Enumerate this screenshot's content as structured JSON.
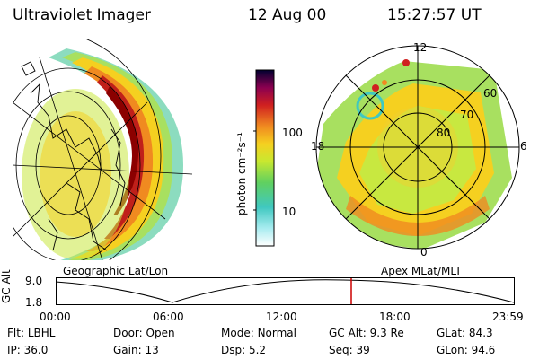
{
  "header": {
    "instrument": "Ultraviolet Imager",
    "date": "12 Aug 00",
    "time": "15:27:57 UT"
  },
  "colorbar": {
    "unit_label": "photon cm⁻²s⁻¹",
    "ticks": [
      "100",
      "10"
    ]
  },
  "polar_plot": {
    "lat_labels": [
      "60",
      "70",
      "80"
    ],
    "mlt_labels": [
      "12",
      "18",
      "6",
      "0"
    ]
  },
  "panel_labels": {
    "left": "Geographic Lat/Lon",
    "right": "Apex MLat/MLT"
  },
  "altitude_panel": {
    "ylabel": "GC Alt",
    "yticks": [
      "9.0",
      "1.8"
    ],
    "xticks": [
      "00:00",
      "06:00",
      "12:00",
      "18:00",
      "23:59"
    ],
    "current_time_fraction": 0.6444
  },
  "info": {
    "row1": [
      {
        "label": "Flt:",
        "value": "LBHL"
      },
      {
        "label": "Door:",
        "value": "Open"
      },
      {
        "label": "Mode:",
        "value": "Normal"
      },
      {
        "label": "GC Alt:",
        "value": "9.3 Re"
      },
      {
        "label": "GLat:",
        "value": "84.3"
      }
    ],
    "row2": [
      {
        "label": "IP:",
        "value": "36.0"
      },
      {
        "label": "Gain:",
        "value": "13"
      },
      {
        "label": "Dsp:",
        "value": "5.2"
      },
      {
        "label": "Seq:",
        "value": "39"
      },
      {
        "label": "GLon:",
        "value": "94.6"
      }
    ]
  },
  "colors": {
    "auroral_peak": "#8b0000",
    "marker": "#cc0000"
  }
}
